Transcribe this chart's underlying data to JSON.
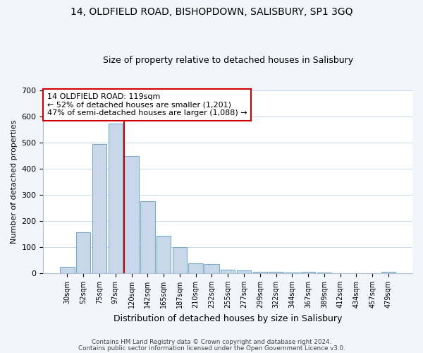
{
  "title1": "14, OLDFIELD ROAD, BISHOPDOWN, SALISBURY, SP1 3GQ",
  "title2": "Size of property relative to detached houses in Salisbury",
  "xlabel": "Distribution of detached houses by size in Salisbury",
  "ylabel": "Number of detached properties",
  "bar_labels": [
    "30sqm",
    "52sqm",
    "75sqm",
    "97sqm",
    "120sqm",
    "142sqm",
    "165sqm",
    "187sqm",
    "210sqm",
    "232sqm",
    "255sqm",
    "277sqm",
    "299sqm",
    "322sqm",
    "344sqm",
    "367sqm",
    "389sqm",
    "412sqm",
    "434sqm",
    "457sqm",
    "479sqm"
  ],
  "bar_values": [
    25,
    157,
    495,
    572,
    448,
    275,
    143,
    100,
    37,
    35,
    14,
    12,
    5,
    5,
    3,
    5,
    2,
    1,
    0,
    0,
    5
  ],
  "bar_color": "#c8d8ea",
  "bar_edge_color": "#7aaac8",
  "vline_color": "#cc0000",
  "annotation_text": "14 OLDFIELD ROAD: 119sqm\n← 52% of detached houses are smaller (1,201)\n47% of semi-detached houses are larger (1,088) →",
  "annotation_box_color": "#ffffff",
  "annotation_box_edge": "#cc0000",
  "ylim": [
    0,
    700
  ],
  "yticks": [
    0,
    100,
    200,
    300,
    400,
    500,
    600,
    700
  ],
  "footer1": "Contains HM Land Registry data © Crown copyright and database right 2024.",
  "footer2": "Contains public sector information licensed under the Open Government Licence v3.0.",
  "bg_color": "#f2f6fa",
  "plot_bg_color": "#ffffff",
  "grid_color": "#c8d8e8"
}
